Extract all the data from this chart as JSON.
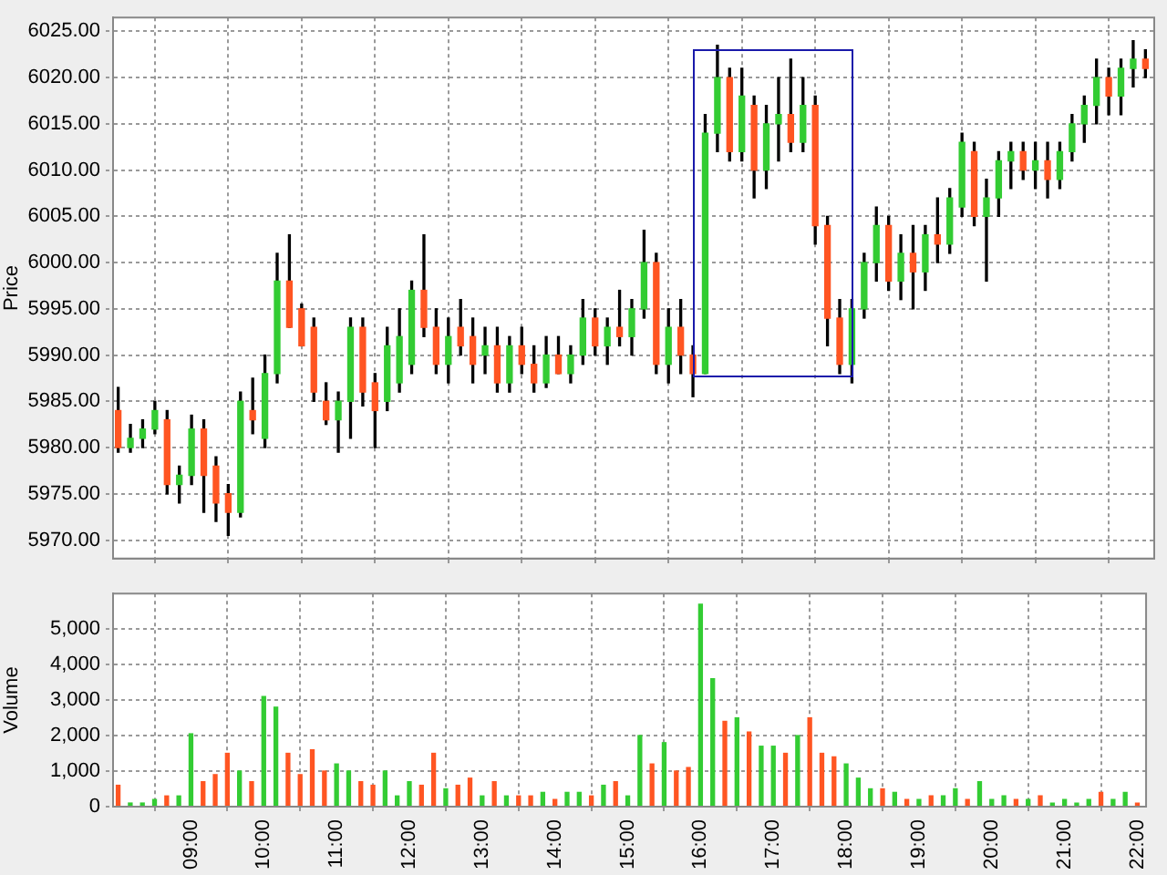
{
  "chart_data": [
    {
      "type": "candlestick",
      "ylabel": "Price",
      "grid": true,
      "tick_labels": "y",
      "xlim": [
        7.93,
        22.12
      ],
      "xticks": [
        {
          "value": 9,
          "label": null
        },
        {
          "value": 10,
          "label": null
        },
        {
          "value": 11,
          "label": null
        },
        {
          "value": 12,
          "label": null
        },
        {
          "value": 13,
          "label": null
        },
        {
          "value": 14,
          "label": null
        },
        {
          "value": 15,
          "label": null
        },
        {
          "value": 16,
          "label": null
        },
        {
          "value": 17,
          "label": null
        },
        {
          "value": 18,
          "label": null
        },
        {
          "value": 19,
          "label": null
        },
        {
          "value": 20,
          "label": null
        },
        {
          "value": 21,
          "label": null
        },
        {
          "value": 22,
          "label": null
        }
      ],
      "ylim": [
        5968,
        6026.5
      ],
      "yticks": [
        {
          "value": 5970,
          "label": "5970.00"
        },
        {
          "value": 5975,
          "label": "5975.00"
        },
        {
          "value": 5980,
          "label": "5980.00"
        },
        {
          "value": 5985,
          "label": "5985.00"
        },
        {
          "value": 5990,
          "label": "5990.00"
        },
        {
          "value": 5995,
          "label": "5995.00"
        },
        {
          "value": 6000,
          "label": "6000.00"
        },
        {
          "value": 6005,
          "label": "6005.00"
        },
        {
          "value": 6010,
          "label": "6010.00"
        },
        {
          "value": 6015,
          "label": "6015.00"
        },
        {
          "value": 6020,
          "label": "6020.00"
        },
        {
          "value": 6025,
          "label": "6025.00"
        }
      ],
      "x": [
        8,
        8.1667,
        8.3333,
        8.5,
        8.6667,
        8.8333,
        9,
        9.1667,
        9.3333,
        9.5,
        9.6667,
        9.8333,
        10,
        10.1667,
        10.3333,
        10.5,
        10.6667,
        10.8333,
        11,
        11.1667,
        11.3333,
        11.5,
        11.6667,
        11.8333,
        12,
        12.1667,
        12.3333,
        12.5,
        12.6667,
        12.8333,
        13,
        13.1667,
        13.3333,
        13.5,
        13.6667,
        13.8333,
        14,
        14.1667,
        14.3333,
        14.5,
        14.6667,
        14.8333,
        15,
        15.1667,
        15.3333,
        15.5,
        15.6667,
        15.8333,
        16,
        16.1667,
        16.3333,
        16.5,
        16.6667,
        16.8333,
        17,
        17.1667,
        17.3333,
        17.5,
        17.6667,
        17.8333,
        18,
        18.1667,
        18.3333,
        18.5,
        18.6667,
        18.8333,
        19,
        19.1667,
        19.3333,
        19.5,
        19.6667,
        19.8333,
        20,
        20.1667,
        20.3333,
        20.5,
        20.6667,
        20.8333,
        21,
        21.1667,
        21.3333,
        21.5,
        21.6667,
        21.8333,
        22
      ],
      "ohlc": [
        [
          5984,
          5986.5,
          5979.5,
          5980
        ],
        [
          5980,
          5982.5,
          5979.5,
          5981
        ],
        [
          5981,
          5983,
          5980,
          5982
        ],
        [
          5982,
          5985,
          5981.5,
          5984
        ],
        [
          5983,
          5984,
          5975,
          5976
        ],
        [
          5976,
          5978,
          5974,
          5977
        ],
        [
          5977,
          5983.5,
          5976,
          5982
        ],
        [
          5982,
          5983,
          5973,
          5977
        ],
        [
          5978,
          5979,
          5972,
          5974
        ],
        [
          5975,
          5976,
          5970.5,
          5973
        ],
        [
          5973,
          5986,
          5972.5,
          5985
        ],
        [
          5984,
          5987.5,
          5981.5,
          5983
        ],
        [
          5981,
          5990,
          5980,
          5988
        ],
        [
          5988,
          6001,
          5987,
          5998
        ],
        [
          5998,
          6003,
          5993,
          5993
        ],
        [
          5995,
          5995.5,
          5991,
          5991
        ],
        [
          5993,
          5994,
          5985,
          5986
        ],
        [
          5985,
          5987,
          5982.5,
          5983
        ],
        [
          5983,
          5986,
          5979.5,
          5985
        ],
        [
          5985,
          5994,
          5981,
          5993
        ],
        [
          5993,
          5994,
          5984.5,
          5986
        ],
        [
          5987,
          5988,
          5980,
          5984
        ],
        [
          5985,
          5993,
          5984,
          5991
        ],
        [
          5987,
          5995,
          5986,
          5992
        ],
        [
          5989,
          5998,
          5988,
          5997
        ],
        [
          5997,
          6003,
          5992,
          5993
        ],
        [
          5993,
          5995,
          5988,
          5989
        ],
        [
          5989,
          5994,
          5987,
          5992
        ],
        [
          5993,
          5996,
          5990,
          5991
        ],
        [
          5992,
          5994,
          5987,
          5989
        ],
        [
          5990,
          5993,
          5988,
          5991
        ],
        [
          5991,
          5993,
          5986,
          5987
        ],
        [
          5987,
          5992,
          5986,
          5991
        ],
        [
          5991,
          5993,
          5988,
          5989
        ],
        [
          5989,
          5991,
          5986,
          5987
        ],
        [
          5987,
          5992,
          5986.5,
          5990
        ],
        [
          5990,
          5992,
          5988,
          5988
        ],
        [
          5988,
          5991,
          5987,
          5990
        ],
        [
          5990,
          5996,
          5989,
          5994
        ],
        [
          5994,
          5995,
          5990,
          5991
        ],
        [
          5991,
          5994,
          5989,
          5993
        ],
        [
          5993,
          5997,
          5991,
          5992
        ],
        [
          5992,
          5996,
          5990,
          5995
        ],
        [
          5995,
          6003.5,
          5994,
          6000
        ],
        [
          6000,
          6001,
          5988,
          5989
        ],
        [
          5989,
          5995,
          5987,
          5993
        ],
        [
          5993,
          5996,
          5988,
          5990
        ],
        [
          5990,
          5991,
          5985.5,
          5988
        ],
        [
          5988,
          6016,
          5988,
          6014
        ],
        [
          6014,
          6023.5,
          6012,
          6020
        ],
        [
          6020,
          6021,
          6011,
          6012
        ],
        [
          6012,
          6021,
          6011,
          6018
        ],
        [
          6017,
          6018,
          6007,
          6010
        ],
        [
          6010,
          6017,
          6008,
          6015
        ],
        [
          6015,
          6020,
          6011,
          6016
        ],
        [
          6016,
          6022,
          6012,
          6013
        ],
        [
          6013,
          6020,
          6012,
          6017
        ],
        [
          6017,
          6018,
          6002,
          6004
        ],
        [
          6004,
          6005,
          5991,
          5994
        ],
        [
          5994,
          5996,
          5988,
          5989
        ],
        [
          5989,
          5996,
          5987,
          5995
        ],
        [
          5995,
          6001,
          5994,
          6000
        ],
        [
          6000,
          6006,
          5998,
          6004
        ],
        [
          6004,
          6005,
          5997,
          5998
        ],
        [
          5998,
          6003,
          5996,
          6001
        ],
        [
          6001,
          6004,
          5995,
          5999
        ],
        [
          5999,
          6004,
          5997,
          6003
        ],
        [
          6003,
          6007,
          6000,
          6002
        ],
        [
          6002,
          6008,
          6001,
          6007
        ],
        [
          6006,
          6014,
          6005,
          6013
        ],
        [
          6012,
          6013,
          6004,
          6005
        ],
        [
          6005,
          6009,
          5998,
          6007
        ],
        [
          6007,
          6012,
          6005,
          6011
        ],
        [
          6011,
          6013,
          6008,
          6012
        ],
        [
          6012,
          6013,
          6009,
          6010
        ],
        [
          6010,
          6013,
          6008,
          6011
        ],
        [
          6011,
          6013,
          6007,
          6009
        ],
        [
          6009,
          6013,
          6008,
          6012
        ],
        [
          6012,
          6016,
          6011,
          6015
        ],
        [
          6015,
          6018,
          6013,
          6017
        ],
        [
          6017,
          6022,
          6015,
          6020
        ],
        [
          6020,
          6021,
          6016,
          6018
        ],
        [
          6018,
          6022,
          6016,
          6021
        ],
        [
          6021,
          6024,
          6019,
          6022
        ],
        [
          6022,
          6023,
          6020,
          6021
        ]
      ],
      "colors": [
        "#ff5522",
        "#33cc33",
        "#33cc33",
        "#33cc33",
        "#ff5522",
        "#33cc33",
        "#33cc33",
        "#ff5522",
        "#ff5522",
        "#ff5522",
        "#33cc33",
        "#ff5522",
        "#33cc33",
        "#33cc33",
        "#ff5522",
        "#ff5522",
        "#ff5522",
        "#ff5522",
        "#33cc33",
        "#33cc33",
        "#ff5522",
        "#ff5522",
        "#33cc33",
        "#33cc33",
        "#33cc33",
        "#ff5522",
        "#ff5522",
        "#33cc33",
        "#ff5522",
        "#ff5522",
        "#33cc33",
        "#ff5522",
        "#33cc33",
        "#ff5522",
        "#ff5522",
        "#33cc33",
        "#ff5522",
        "#33cc33",
        "#33cc33",
        "#ff5522",
        "#33cc33",
        "#ff5522",
        "#33cc33",
        "#33cc33",
        "#ff5522",
        "#33cc33",
        "#ff5522",
        "#ff5522",
        "#33cc33",
        "#33cc33",
        "#ff5522",
        "#33cc33",
        "#ff5522",
        "#33cc33",
        "#33cc33",
        "#ff5522",
        "#33cc33",
        "#ff5522",
        "#ff5522",
        "#ff5522",
        "#33cc33",
        "#33cc33",
        "#33cc33",
        "#ff5522",
        "#33cc33",
        "#ff5522",
        "#33cc33",
        "#ff5522",
        "#33cc33",
        "#33cc33",
        "#ff5522",
        "#33cc33",
        "#33cc33",
        "#33cc33",
        "#ff5522",
        "#33cc33",
        "#ff5522",
        "#33cc33",
        "#33cc33",
        "#33cc33",
        "#33cc33",
        "#ff5522",
        "#33cc33",
        "#33cc33",
        "#ff5522"
      ]
    },
    {
      "type": "bar",
      "ylabel": "Volume",
      "grid": true,
      "xlim": [
        7.93,
        22.12
      ],
      "xticks": [
        {
          "value": 9,
          "label": "09:00"
        },
        {
          "value": 10,
          "label": "10:00"
        },
        {
          "value": 11,
          "label": "11:00"
        },
        {
          "value": 12,
          "label": "12:00"
        },
        {
          "value": 13,
          "label": "13:00"
        },
        {
          "value": 14,
          "label": "14:00"
        },
        {
          "value": 15,
          "label": "15:00"
        },
        {
          "value": 16,
          "label": "16:00"
        },
        {
          "value": 17,
          "label": "17:00"
        },
        {
          "value": 18,
          "label": "18:00"
        },
        {
          "value": 19,
          "label": "19:00"
        },
        {
          "value": 20,
          "label": "20:00"
        },
        {
          "value": 21,
          "label": "21:00"
        },
        {
          "value": 22,
          "label": "22:00"
        }
      ],
      "ylim": [
        0,
        6000
      ],
      "yticks": [
        0,
        {
          "value": 1000,
          "label": "1,000"
        },
        {
          "value": 2000,
          "label": "2,000"
        },
        {
          "value": 3000,
          "label": "3,000"
        },
        {
          "value": 4000,
          "label": "4,000"
        },
        {
          "value": 5000,
          "label": "5,000"
        }
      ],
      "x": [
        8,
        8.1667,
        8.3333,
        8.5,
        8.6667,
        8.8333,
        9,
        9.1667,
        9.3333,
        9.5,
        9.6667,
        9.8333,
        10,
        10.1667,
        10.3333,
        10.5,
        10.6667,
        10.8333,
        11,
        11.1667,
        11.3333,
        11.5,
        11.6667,
        11.8333,
        12,
        12.1667,
        12.3333,
        12.5,
        12.6667,
        12.8333,
        13,
        13.1667,
        13.3333,
        13.5,
        13.6667,
        13.8333,
        14,
        14.1667,
        14.3333,
        14.5,
        14.6667,
        14.8333,
        15,
        15.1667,
        15.3333,
        15.5,
        15.6667,
        15.8333,
        16,
        16.1667,
        16.3333,
        16.5,
        16.6667,
        16.8333,
        17,
        17.1667,
        17.3333,
        17.5,
        17.6667,
        17.8333,
        18,
        18.1667,
        18.3333,
        18.5,
        18.6667,
        18.8333,
        19,
        19.1667,
        19.3333,
        19.5,
        19.6667,
        19.8333,
        20,
        20.1667,
        20.3333,
        20.5,
        20.6667,
        20.8333,
        21,
        21.1667,
        21.3333,
        21.5,
        21.6667,
        21.8333,
        22
      ],
      "values": [
        600,
        100,
        100,
        200,
        300,
        300,
        2050,
        700,
        900,
        1500,
        1000,
        700,
        3100,
        2800,
        1500,
        900,
        1600,
        1000,
        1200,
        1000,
        700,
        600,
        1000,
        300,
        700,
        600,
        1500,
        500,
        600,
        800,
        300,
        700,
        300,
        300,
        300,
        400,
        200,
        400,
        400,
        300,
        600,
        700,
        300,
        2000,
        1200,
        1800,
        1000,
        1100,
        5700,
        3600,
        2400,
        2500,
        2100,
        1700,
        1700,
        1500,
        2000,
        2500,
        1500,
        1400,
        1200,
        800,
        500,
        500,
        400,
        200,
        200,
        300,
        300,
        500,
        200,
        700,
        200,
        300,
        200,
        200,
        300,
        100,
        200,
        100,
        200,
        400,
        200,
        400,
        100
      ],
      "colors": [
        "#ff5522",
        "#33cc33",
        "#33cc33",
        "#33cc33",
        "#ff5522",
        "#33cc33",
        "#33cc33",
        "#ff5522",
        "#ff5522",
        "#ff5522",
        "#33cc33",
        "#ff5522",
        "#33cc33",
        "#33cc33",
        "#ff5522",
        "#ff5522",
        "#ff5522",
        "#ff5522",
        "#33cc33",
        "#33cc33",
        "#ff5522",
        "#ff5522",
        "#33cc33",
        "#33cc33",
        "#33cc33",
        "#ff5522",
        "#ff5522",
        "#33cc33",
        "#ff5522",
        "#ff5522",
        "#33cc33",
        "#ff5522",
        "#33cc33",
        "#ff5522",
        "#ff5522",
        "#33cc33",
        "#ff5522",
        "#33cc33",
        "#33cc33",
        "#ff5522",
        "#33cc33",
        "#ff5522",
        "#33cc33",
        "#33cc33",
        "#ff5522",
        "#33cc33",
        "#ff5522",
        "#ff5522",
        "#33cc33",
        "#33cc33",
        "#ff5522",
        "#33cc33",
        "#ff5522",
        "#33cc33",
        "#33cc33",
        "#ff5522",
        "#33cc33",
        "#ff5522",
        "#ff5522",
        "#ff5522",
        "#33cc33",
        "#33cc33",
        "#33cc33",
        "#ff5522",
        "#33cc33",
        "#ff5522",
        "#33cc33",
        "#ff5522",
        "#33cc33",
        "#33cc33",
        "#ff5522",
        "#33cc33",
        "#33cc33",
        "#33cc33",
        "#ff5522",
        "#33cc33",
        "#ff5522",
        "#33cc33",
        "#33cc33",
        "#33cc33",
        "#33cc33",
        "#ff5522",
        "#33cc33",
        "#33cc33",
        "#ff5522"
      ]
    }
  ]
}
